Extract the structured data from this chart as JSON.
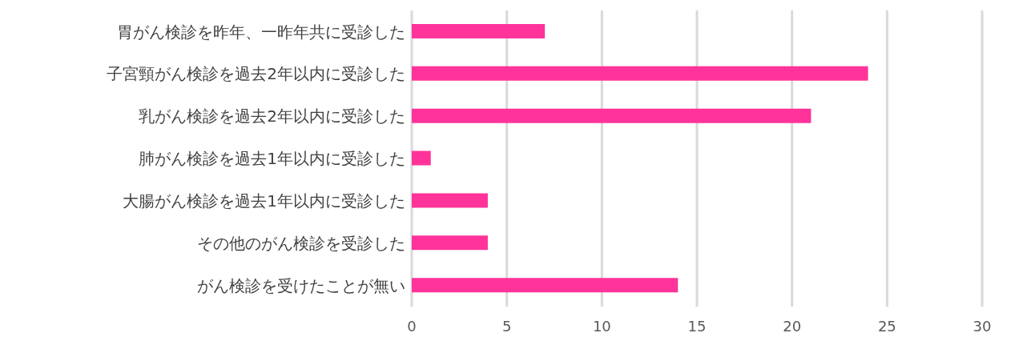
{
  "chart_data": {
    "type": "bar",
    "orientation": "horizontal",
    "categories": [
      "胃がん検診を昨年、一昨年共に受診した",
      "子宮頸がん検診を過去2年以内に受診した",
      "乳がん検診を過去2年以内に受診した",
      "肺がん検診を過去1年以内に受診した",
      "大腸がん検診を過去1年以内に受診した",
      "その他のがん検診を受診した",
      "がん検診を受けたことが無い"
    ],
    "values": [
      7,
      24,
      21,
      1,
      4,
      4,
      14
    ],
    "color": "#ff3399",
    "xlim": [
      0,
      30
    ],
    "xticks": [
      0,
      5,
      10,
      15,
      20,
      25,
      30
    ],
    "grid": "x"
  }
}
